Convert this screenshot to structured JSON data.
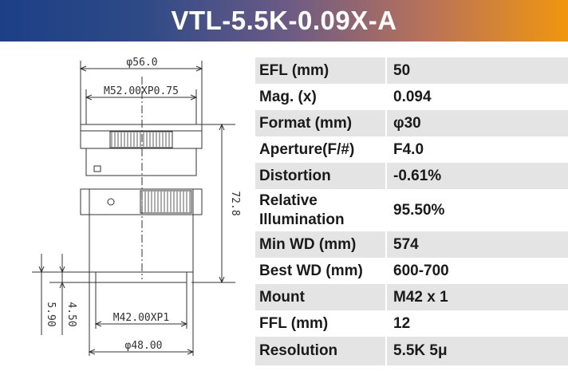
{
  "title": "VTL-5.5K-0.09X-A",
  "drawing": {
    "dims": {
      "outer_diameter": "φ56.0",
      "front_thread": "M52.00XP0.75",
      "length": "72.8",
      "rear_thread": "M42.00XP1",
      "rear_diameter": "φ48.00",
      "flange_offset": "4.50",
      "mount_offset": "5.90"
    }
  },
  "specs": [
    {
      "label": "EFL (mm)",
      "value": "50"
    },
    {
      "label": "Mag. (x)",
      "value": "0.094"
    },
    {
      "label": "Format (mm)",
      "value": "φ30"
    },
    {
      "label": "Aperture(F/#)",
      "value": "F4.0"
    },
    {
      "label": "Distortion",
      "value": "-0.61%"
    },
    {
      "label": "Relative Illumination",
      "value": "95.50%"
    },
    {
      "label": "Min WD (mm)",
      "value": "574"
    },
    {
      "label": "Best WD (mm)",
      "value": "600-700"
    },
    {
      "label": "Mount",
      "value": "M42 x 1"
    },
    {
      "label": "FFL (mm)",
      "value": "12"
    },
    {
      "label": "Resolution",
      "value": "5.5K 5μ"
    }
  ],
  "colors": {
    "banner_start": "#1c3f86",
    "banner_end": "#f0960f",
    "row_shade": "#e4e4e4",
    "drawing_line": "#333333"
  }
}
